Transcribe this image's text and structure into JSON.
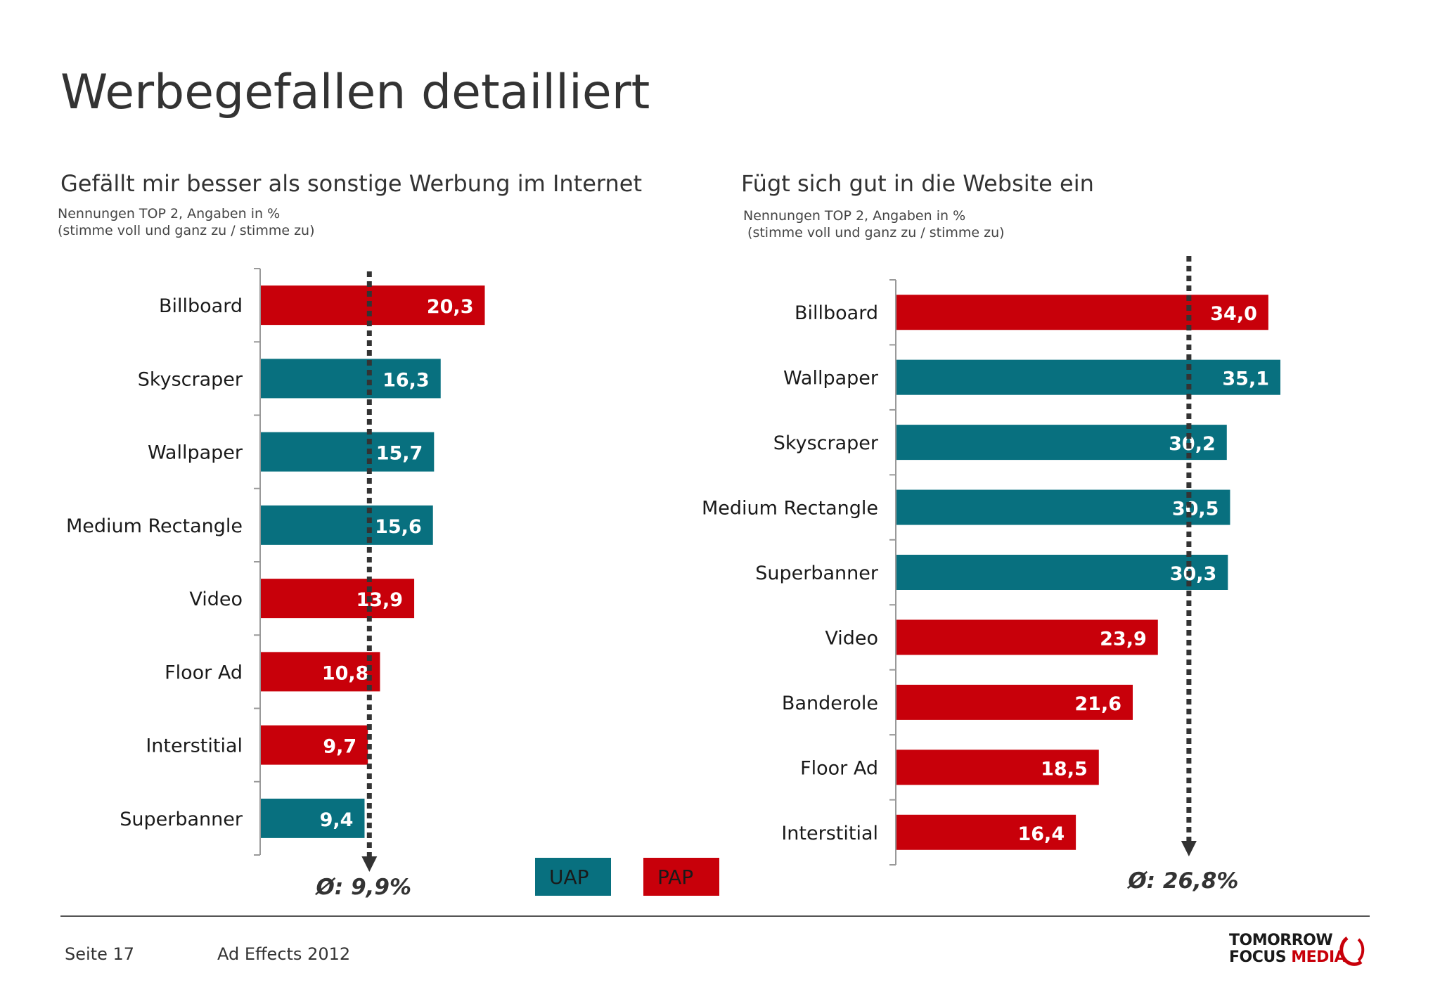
{
  "page": {
    "title": "Werbegefallen detailliert"
  },
  "colors": {
    "uap": "#08707f",
    "pap": "#c8000a",
    "axis": "#999999",
    "avg_line": "#333333"
  },
  "legend": {
    "uap_label": "UAP",
    "pap_label": "PAP"
  },
  "footer": {
    "page": "Seite 17",
    "study": "Ad Effects 2012",
    "logo_line1": "TOMORROW",
    "logo_line2a": "FOCUS",
    "logo_line2b": "MEDIA"
  },
  "chart_data": [
    {
      "type": "bar",
      "orientation": "horizontal",
      "title": "Gefällt mir besser als sonstige Werbung im Internet",
      "subtitle": "Nennungen TOP 2, Angaben in %\n(stimme voll und ganz zu / stimme zu)",
      "categories": [
        "Billboard",
        "Skyscraper",
        "Wallpaper",
        "Medium Rectangle",
        "Video",
        "Floor Ad",
        "Interstitial",
        "Superbanner"
      ],
      "values": [
        20.3,
        16.3,
        15.7,
        15.6,
        13.9,
        10.8,
        9.7,
        9.4
      ],
      "value_labels": [
        "20,3",
        "16,3",
        "15,7",
        "15,6",
        "13,9",
        "10,8",
        "9,7",
        "9,4"
      ],
      "groups": [
        "PAP",
        "UAP",
        "UAP",
        "UAP",
        "PAP",
        "PAP",
        "PAP",
        "UAP"
      ],
      "average": 9.9,
      "average_label": "Ø: 9,9%",
      "xlim": [
        0,
        45
      ]
    },
    {
      "type": "bar",
      "orientation": "horizontal",
      "title": "Fügt sich gut in die Website ein",
      "subtitle": "Nennungen TOP 2, Angaben in %\n (stimme voll und ganz zu / stimme zu)",
      "categories": [
        "Billboard",
        "Wallpaper",
        "Skyscraper",
        "Medium Rectangle",
        "Superbanner",
        "Video",
        "Banderole",
        "Floor Ad",
        "Interstitial"
      ],
      "values": [
        34.0,
        35.1,
        30.2,
        30.5,
        30.3,
        23.9,
        21.6,
        18.5,
        16.4
      ],
      "value_labels": [
        "34,0",
        "35,1",
        "30,2",
        "30,5",
        "30,3",
        "23,9",
        "21,6",
        "18,5",
        "16,4"
      ],
      "groups": [
        "PAP",
        "UAP",
        "UAP",
        "UAP",
        "UAP",
        "PAP",
        "PAP",
        "PAP",
        "PAP"
      ],
      "average": 26.8,
      "average_label": "Ø: 26,8%",
      "xlim": [
        0,
        35.1
      ]
    }
  ]
}
